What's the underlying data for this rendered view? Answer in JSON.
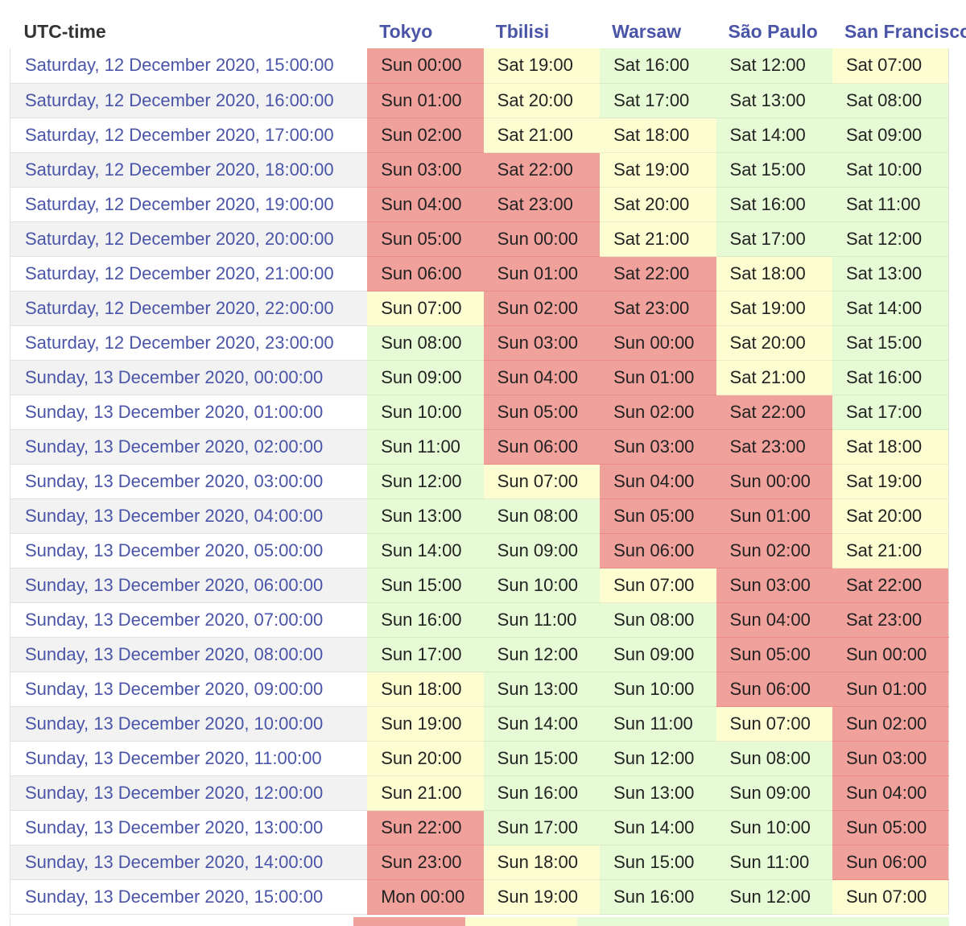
{
  "header": {
    "utc_label": "UTC-time",
    "cities": [
      "Tokyo",
      "Tbilisi",
      "Warsaw",
      "São Paulo",
      "San Francisco"
    ]
  },
  "colors": {
    "night": "#f1a19c",
    "edge": "#fdfdd2",
    "day": "#e6fad5",
    "link": "#4a55a8"
  },
  "rows": [
    {
      "utc": "Saturday, 12 December 2020, 15:00:00",
      "cells": [
        {
          "time": "Sun 00:00",
          "status": "night"
        },
        {
          "time": "Sat 19:00",
          "status": "edge"
        },
        {
          "time": "Sat 16:00",
          "status": "day"
        },
        {
          "time": "Sat 12:00",
          "status": "day"
        },
        {
          "time": "Sat 07:00",
          "status": "edge"
        }
      ]
    },
    {
      "utc": "Saturday, 12 December 2020, 16:00:00",
      "cells": [
        {
          "time": "Sun 01:00",
          "status": "night"
        },
        {
          "time": "Sat 20:00",
          "status": "edge"
        },
        {
          "time": "Sat 17:00",
          "status": "day"
        },
        {
          "time": "Sat 13:00",
          "status": "day"
        },
        {
          "time": "Sat 08:00",
          "status": "day"
        }
      ]
    },
    {
      "utc": "Saturday, 12 December 2020, 17:00:00",
      "cells": [
        {
          "time": "Sun 02:00",
          "status": "night"
        },
        {
          "time": "Sat 21:00",
          "status": "edge"
        },
        {
          "time": "Sat 18:00",
          "status": "edge"
        },
        {
          "time": "Sat 14:00",
          "status": "day"
        },
        {
          "time": "Sat 09:00",
          "status": "day"
        }
      ]
    },
    {
      "utc": "Saturday, 12 December 2020, 18:00:00",
      "cells": [
        {
          "time": "Sun 03:00",
          "status": "night"
        },
        {
          "time": "Sat 22:00",
          "status": "night"
        },
        {
          "time": "Sat 19:00",
          "status": "edge"
        },
        {
          "time": "Sat 15:00",
          "status": "day"
        },
        {
          "time": "Sat 10:00",
          "status": "day"
        }
      ]
    },
    {
      "utc": "Saturday, 12 December 2020, 19:00:00",
      "cells": [
        {
          "time": "Sun 04:00",
          "status": "night"
        },
        {
          "time": "Sat 23:00",
          "status": "night"
        },
        {
          "time": "Sat 20:00",
          "status": "edge"
        },
        {
          "time": "Sat 16:00",
          "status": "day"
        },
        {
          "time": "Sat 11:00",
          "status": "day"
        }
      ]
    },
    {
      "utc": "Saturday, 12 December 2020, 20:00:00",
      "cells": [
        {
          "time": "Sun 05:00",
          "status": "night"
        },
        {
          "time": "Sun 00:00",
          "status": "night"
        },
        {
          "time": "Sat 21:00",
          "status": "edge"
        },
        {
          "time": "Sat 17:00",
          "status": "day"
        },
        {
          "time": "Sat 12:00",
          "status": "day"
        }
      ]
    },
    {
      "utc": "Saturday, 12 December 2020, 21:00:00",
      "cells": [
        {
          "time": "Sun 06:00",
          "status": "night"
        },
        {
          "time": "Sun 01:00",
          "status": "night"
        },
        {
          "time": "Sat 22:00",
          "status": "night"
        },
        {
          "time": "Sat 18:00",
          "status": "edge"
        },
        {
          "time": "Sat 13:00",
          "status": "day"
        }
      ]
    },
    {
      "utc": "Saturday, 12 December 2020, 22:00:00",
      "cells": [
        {
          "time": "Sun 07:00",
          "status": "edge"
        },
        {
          "time": "Sun 02:00",
          "status": "night"
        },
        {
          "time": "Sat 23:00",
          "status": "night"
        },
        {
          "time": "Sat 19:00",
          "status": "edge"
        },
        {
          "time": "Sat 14:00",
          "status": "day"
        }
      ]
    },
    {
      "utc": "Saturday, 12 December 2020, 23:00:00",
      "cells": [
        {
          "time": "Sun 08:00",
          "status": "day"
        },
        {
          "time": "Sun 03:00",
          "status": "night"
        },
        {
          "time": "Sun 00:00",
          "status": "night"
        },
        {
          "time": "Sat 20:00",
          "status": "edge"
        },
        {
          "time": "Sat 15:00",
          "status": "day"
        }
      ]
    },
    {
      "utc": "Sunday, 13 December 2020, 00:00:00",
      "cells": [
        {
          "time": "Sun 09:00",
          "status": "day"
        },
        {
          "time": "Sun 04:00",
          "status": "night"
        },
        {
          "time": "Sun 01:00",
          "status": "night"
        },
        {
          "time": "Sat 21:00",
          "status": "edge"
        },
        {
          "time": "Sat 16:00",
          "status": "day"
        }
      ]
    },
    {
      "utc": "Sunday, 13 December 2020, 01:00:00",
      "cells": [
        {
          "time": "Sun 10:00",
          "status": "day"
        },
        {
          "time": "Sun 05:00",
          "status": "night"
        },
        {
          "time": "Sun 02:00",
          "status": "night"
        },
        {
          "time": "Sat 22:00",
          "status": "night"
        },
        {
          "time": "Sat 17:00",
          "status": "day"
        }
      ]
    },
    {
      "utc": "Sunday, 13 December 2020, 02:00:00",
      "cells": [
        {
          "time": "Sun 11:00",
          "status": "day"
        },
        {
          "time": "Sun 06:00",
          "status": "night"
        },
        {
          "time": "Sun 03:00",
          "status": "night"
        },
        {
          "time": "Sat 23:00",
          "status": "night"
        },
        {
          "time": "Sat 18:00",
          "status": "edge"
        }
      ]
    },
    {
      "utc": "Sunday, 13 December 2020, 03:00:00",
      "cells": [
        {
          "time": "Sun 12:00",
          "status": "day"
        },
        {
          "time": "Sun 07:00",
          "status": "edge"
        },
        {
          "time": "Sun 04:00",
          "status": "night"
        },
        {
          "time": "Sun 00:00",
          "status": "night"
        },
        {
          "time": "Sat 19:00",
          "status": "edge"
        }
      ]
    },
    {
      "utc": "Sunday, 13 December 2020, 04:00:00",
      "cells": [
        {
          "time": "Sun 13:00",
          "status": "day"
        },
        {
          "time": "Sun 08:00",
          "status": "day"
        },
        {
          "time": "Sun 05:00",
          "status": "night"
        },
        {
          "time": "Sun 01:00",
          "status": "night"
        },
        {
          "time": "Sat 20:00",
          "status": "edge"
        }
      ]
    },
    {
      "utc": "Sunday, 13 December 2020, 05:00:00",
      "cells": [
        {
          "time": "Sun 14:00",
          "status": "day"
        },
        {
          "time": "Sun 09:00",
          "status": "day"
        },
        {
          "time": "Sun 06:00",
          "status": "night"
        },
        {
          "time": "Sun 02:00",
          "status": "night"
        },
        {
          "time": "Sat 21:00",
          "status": "edge"
        }
      ]
    },
    {
      "utc": "Sunday, 13 December 2020, 06:00:00",
      "cells": [
        {
          "time": "Sun 15:00",
          "status": "day"
        },
        {
          "time": "Sun 10:00",
          "status": "day"
        },
        {
          "time": "Sun 07:00",
          "status": "edge"
        },
        {
          "time": "Sun 03:00",
          "status": "night"
        },
        {
          "time": "Sat 22:00",
          "status": "night"
        }
      ]
    },
    {
      "utc": "Sunday, 13 December 2020, 07:00:00",
      "cells": [
        {
          "time": "Sun 16:00",
          "status": "day"
        },
        {
          "time": "Sun 11:00",
          "status": "day"
        },
        {
          "time": "Sun 08:00",
          "status": "day"
        },
        {
          "time": "Sun 04:00",
          "status": "night"
        },
        {
          "time": "Sat 23:00",
          "status": "night"
        }
      ]
    },
    {
      "utc": "Sunday, 13 December 2020, 08:00:00",
      "cells": [
        {
          "time": "Sun 17:00",
          "status": "day"
        },
        {
          "time": "Sun 12:00",
          "status": "day"
        },
        {
          "time": "Sun 09:00",
          "status": "day"
        },
        {
          "time": "Sun 05:00",
          "status": "night"
        },
        {
          "time": "Sun 00:00",
          "status": "night"
        }
      ]
    },
    {
      "utc": "Sunday, 13 December 2020, 09:00:00",
      "cells": [
        {
          "time": "Sun 18:00",
          "status": "edge"
        },
        {
          "time": "Sun 13:00",
          "status": "day"
        },
        {
          "time": "Sun 10:00",
          "status": "day"
        },
        {
          "time": "Sun 06:00",
          "status": "night"
        },
        {
          "time": "Sun 01:00",
          "status": "night"
        }
      ]
    },
    {
      "utc": "Sunday, 13 December 2020, 10:00:00",
      "cells": [
        {
          "time": "Sun 19:00",
          "status": "edge"
        },
        {
          "time": "Sun 14:00",
          "status": "day"
        },
        {
          "time": "Sun 11:00",
          "status": "day"
        },
        {
          "time": "Sun 07:00",
          "status": "edge"
        },
        {
          "time": "Sun 02:00",
          "status": "night"
        }
      ]
    },
    {
      "utc": "Sunday, 13 December 2020, 11:00:00",
      "cells": [
        {
          "time": "Sun 20:00",
          "status": "edge"
        },
        {
          "time": "Sun 15:00",
          "status": "day"
        },
        {
          "time": "Sun 12:00",
          "status": "day"
        },
        {
          "time": "Sun 08:00",
          "status": "day"
        },
        {
          "time": "Sun 03:00",
          "status": "night"
        }
      ]
    },
    {
      "utc": "Sunday, 13 December 2020, 12:00:00",
      "cells": [
        {
          "time": "Sun 21:00",
          "status": "edge"
        },
        {
          "time": "Sun 16:00",
          "status": "day"
        },
        {
          "time": "Sun 13:00",
          "status": "day"
        },
        {
          "time": "Sun 09:00",
          "status": "day"
        },
        {
          "time": "Sun 04:00",
          "status": "night"
        }
      ]
    },
    {
      "utc": "Sunday, 13 December 2020, 13:00:00",
      "cells": [
        {
          "time": "Sun 22:00",
          "status": "night"
        },
        {
          "time": "Sun 17:00",
          "status": "day"
        },
        {
          "time": "Sun 14:00",
          "status": "day"
        },
        {
          "time": "Sun 10:00",
          "status": "day"
        },
        {
          "time": "Sun 05:00",
          "status": "night"
        }
      ]
    },
    {
      "utc": "Sunday, 13 December 2020, 14:00:00",
      "cells": [
        {
          "time": "Sun 23:00",
          "status": "night"
        },
        {
          "time": "Sun 18:00",
          "status": "edge"
        },
        {
          "time": "Sun 15:00",
          "status": "day"
        },
        {
          "time": "Sun 11:00",
          "status": "day"
        },
        {
          "time": "Sun 06:00",
          "status": "night"
        }
      ]
    },
    {
      "utc": "Sunday, 13 December 2020, 15:00:00",
      "cells": [
        {
          "time": "Mon 00:00",
          "status": "night"
        },
        {
          "time": "Sun 19:00",
          "status": "edge"
        },
        {
          "time": "Sun 16:00",
          "status": "day"
        },
        {
          "time": "Sun 12:00",
          "status": "day"
        },
        {
          "time": "Sun 07:00",
          "status": "edge"
        }
      ]
    }
  ],
  "partial_row_statuses": [
    "white",
    "night",
    "edge",
    "day",
    "day",
    "day"
  ]
}
